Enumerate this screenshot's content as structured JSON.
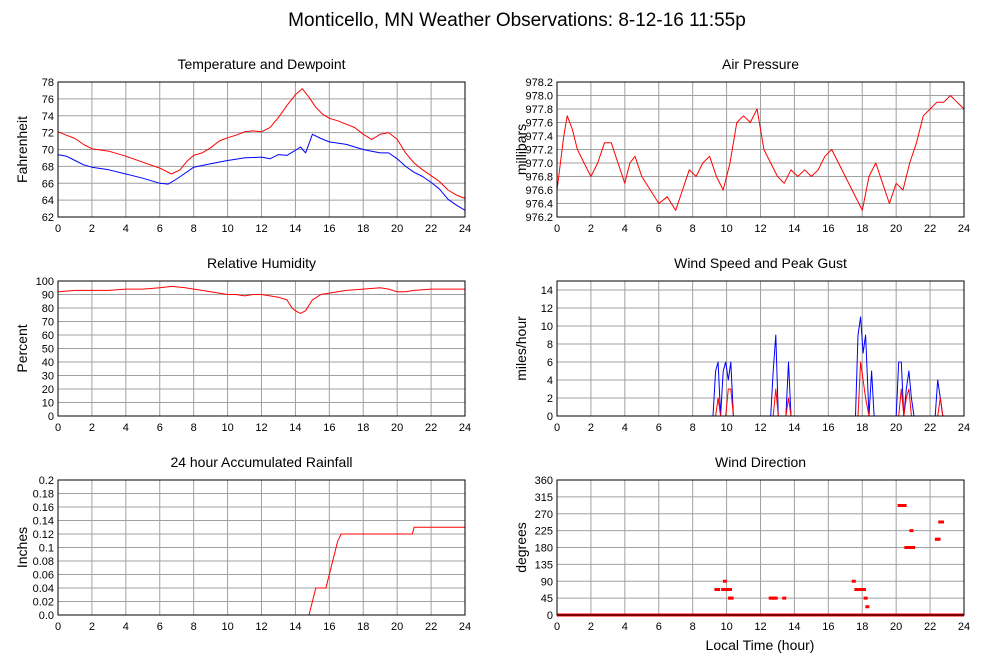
{
  "page": {
    "title": "Monticello, MN Weather Observations: 8-12-16 11:55p",
    "x_axis_footer": "Local Time (hour)"
  },
  "colors": {
    "red": "#ff0000",
    "blue": "#0000ff",
    "grid": "#a0a0a0",
    "frame": "#000000"
  },
  "chart_data": [
    {
      "id": "temp",
      "type": "line",
      "title": "Temperature and Dewpoint",
      "xlabel": "",
      "ylabel": "Fahrenheit",
      "xlim": [
        0,
        24
      ],
      "ylim": [
        62,
        78
      ],
      "xticks": [
        0,
        2,
        4,
        6,
        8,
        10,
        12,
        14,
        16,
        18,
        20,
        22,
        24
      ],
      "yticks": [
        62,
        64,
        66,
        68,
        70,
        72,
        74,
        76,
        78
      ],
      "grid": true,
      "series": [
        {
          "color": "#ff0000",
          "x": [
            0,
            0.5,
            1,
            1.5,
            2,
            3,
            4,
            5,
            6,
            6.7,
            7.2,
            7.6,
            8,
            8.5,
            9,
            9.5,
            10,
            10.5,
            11,
            11.5,
            12,
            12.5,
            13,
            13.5,
            14,
            14.4,
            14.8,
            15.2,
            15.6,
            16,
            16.5,
            17,
            17.5,
            18,
            18.5,
            19,
            19.5,
            20,
            20.5,
            21,
            21.5,
            22,
            22.5,
            23,
            23.5,
            24
          ],
          "y": [
            72.1,
            71.7,
            71.3,
            70.6,
            70.1,
            69.8,
            69.2,
            68.5,
            67.8,
            67.1,
            67.6,
            68.6,
            69.3,
            69.6,
            70.2,
            71.0,
            71.4,
            71.7,
            72.1,
            72.2,
            72.1,
            72.6,
            73.8,
            75.2,
            76.5,
            77.2,
            76.2,
            75.0,
            74.2,
            73.7,
            73.4,
            73.0,
            72.6,
            71.8,
            71.2,
            71.8,
            72.0,
            71.2,
            69.6,
            68.4,
            67.6,
            66.9,
            66.2,
            65.2,
            64.6,
            64.2
          ]
        },
        {
          "color": "#0000ff",
          "x": [
            0,
            0.5,
            1,
            1.5,
            2,
            3,
            4,
            5,
            6,
            6.5,
            7,
            7.5,
            8,
            9,
            10,
            11,
            12,
            12.5,
            13,
            13.5,
            14,
            14.3,
            14.6,
            15,
            15.5,
            16,
            17,
            17.5,
            18,
            18.5,
            19,
            19.5,
            20,
            20.5,
            21,
            21.5,
            22,
            22.5,
            23,
            23.5,
            24
          ],
          "y": [
            69.4,
            69.2,
            68.7,
            68.2,
            67.9,
            67.6,
            67.1,
            66.6,
            66.0,
            65.9,
            66.5,
            67.2,
            67.9,
            68.3,
            68.7,
            69.0,
            69.1,
            68.9,
            69.4,
            69.3,
            69.9,
            70.3,
            69.6,
            71.8,
            71.3,
            70.9,
            70.6,
            70.3,
            70.0,
            69.8,
            69.6,
            69.6,
            68.9,
            68.0,
            67.3,
            66.8,
            66.1,
            65.3,
            64.1,
            63.4,
            62.8
          ]
        }
      ]
    },
    {
      "id": "pressure",
      "type": "line",
      "title": "Air Pressure",
      "xlabel": "",
      "ylabel": "millibars",
      "xlim": [
        0,
        24
      ],
      "ylim": [
        976.2,
        978.2
      ],
      "xticks": [
        0,
        2,
        4,
        6,
        8,
        10,
        12,
        14,
        16,
        18,
        20,
        22,
        24
      ],
      "yticks": [
        "976.2",
        "976.4",
        "976.6",
        "976.8",
        "977.0",
        "977.2",
        "977.4",
        "977.6",
        "977.8",
        "978.0",
        "978.2"
      ],
      "grid": true,
      "series": [
        {
          "color": "#ff0000",
          "x": [
            0,
            0.2,
            0.4,
            0.6,
            0.9,
            1.2,
            1.6,
            2,
            2.4,
            2.8,
            3.2,
            3.6,
            4,
            4.3,
            4.6,
            5,
            5.5,
            6,
            6.5,
            7,
            7.4,
            7.8,
            8.2,
            8.6,
            9,
            9.4,
            9.8,
            10.2,
            10.6,
            11,
            11.4,
            11.8,
            12.2,
            12.6,
            13,
            13.4,
            13.8,
            14.2,
            14.6,
            15,
            15.4,
            15.8,
            16.2,
            16.6,
            17,
            17.4,
            17.8,
            18,
            18.4,
            18.8,
            19.2,
            19.6,
            20,
            20.4,
            20.8,
            21.2,
            21.6,
            22,
            22.4,
            22.8,
            23.2,
            23.6,
            24
          ],
          "y": [
            976.6,
            977.0,
            977.4,
            977.7,
            977.5,
            977.2,
            977.0,
            976.8,
            977.0,
            977.3,
            977.3,
            977.0,
            976.7,
            977.0,
            977.1,
            976.8,
            976.6,
            976.4,
            976.5,
            976.3,
            976.6,
            976.9,
            976.8,
            977.0,
            977.1,
            976.8,
            976.6,
            977.0,
            977.6,
            977.7,
            977.6,
            977.8,
            977.2,
            977.0,
            976.8,
            976.7,
            976.9,
            976.8,
            976.9,
            976.8,
            976.9,
            977.1,
            977.2,
            977.0,
            976.8,
            976.6,
            976.4,
            976.3,
            976.8,
            977.0,
            976.7,
            976.4,
            976.7,
            976.6,
            977.0,
            977.3,
            977.7,
            977.8,
            977.9,
            977.9,
            978.0,
            977.9,
            977.8
          ]
        }
      ]
    },
    {
      "id": "humidity",
      "type": "line",
      "title": "Relative Humidity",
      "xlabel": "",
      "ylabel": "Percent",
      "xlim": [
        0,
        24
      ],
      "ylim": [
        0,
        100
      ],
      "xticks": [
        0,
        2,
        4,
        6,
        8,
        10,
        12,
        14,
        16,
        18,
        20,
        22,
        24
      ],
      "yticks": [
        0,
        10,
        20,
        30,
        40,
        50,
        60,
        70,
        80,
        90,
        100
      ],
      "grid": true,
      "series": [
        {
          "color": "#ff0000",
          "x": [
            0,
            1,
            2,
            3,
            4,
            5,
            6,
            6.7,
            7.5,
            8,
            8.5,
            9,
            9.5,
            10,
            10.5,
            11,
            11.5,
            12,
            12.5,
            13,
            13.5,
            13.8,
            14,
            14.3,
            14.6,
            15,
            15.5,
            16,
            17,
            18,
            19,
            19.5,
            20,
            20.5,
            21,
            22,
            23,
            24
          ],
          "y": [
            92,
            93,
            93,
            93,
            94,
            94,
            95,
            96,
            95,
            94,
            93,
            92,
            91,
            90,
            90,
            89,
            90,
            90,
            89,
            88,
            86,
            80,
            78,
            76,
            78,
            86,
            90,
            91,
            93,
            94,
            95,
            94,
            92,
            92,
            93,
            94,
            94,
            94
          ]
        }
      ]
    },
    {
      "id": "wind",
      "type": "line",
      "title": "Wind Speed and Peak Gust",
      "xlabel": "",
      "ylabel": "miles/hour",
      "xlim": [
        0,
        24
      ],
      "ylim": [
        0,
        15
      ],
      "xticks": [
        0,
        2,
        4,
        6,
        8,
        10,
        12,
        14,
        16,
        18,
        20,
        22,
        24
      ],
      "yticks": [
        0,
        2,
        4,
        6,
        8,
        10,
        12,
        14
      ],
      "grid": true,
      "series": [
        {
          "color": "#0000ff",
          "x": [
            0,
            9.2,
            9.35,
            9.5,
            9.65,
            9.8,
            9.95,
            10.1,
            10.25,
            10.4,
            10.55,
            12.6,
            12.75,
            12.9,
            13.05,
            13.5,
            13.65,
            13.8,
            17.6,
            17.75,
            17.9,
            18.05,
            18.2,
            18.4,
            18.55,
            18.7,
            20.0,
            20.15,
            20.3,
            20.45,
            20.6,
            20.75,
            20.9,
            21.05,
            22.3,
            22.45,
            22.6,
            22.75,
            24
          ],
          "y": [
            0,
            0,
            5,
            6,
            0,
            5,
            6,
            4,
            6,
            0,
            0,
            0,
            5,
            9,
            0,
            0,
            6,
            0,
            0,
            9,
            11,
            7,
            9,
            0,
            5,
            0,
            0,
            6,
            6,
            0,
            3,
            5,
            2,
            0,
            0,
            4,
            2,
            0,
            0
          ]
        },
        {
          "color": "#ff0000",
          "x": [
            0,
            9.35,
            9.5,
            9.65,
            9.95,
            10.1,
            10.25,
            10.4,
            12.75,
            12.9,
            13.05,
            13.5,
            13.65,
            13.8,
            17.75,
            17.9,
            18.05,
            18.2,
            18.4,
            20.15,
            20.3,
            20.45,
            20.6,
            20.75,
            20.9,
            22.45,
            22.6,
            22.75,
            24
          ],
          "y": [
            0,
            0,
            2,
            0,
            0,
            3,
            3,
            0,
            0,
            3,
            0,
            0,
            2,
            0,
            0,
            6,
            4,
            2,
            0,
            0,
            3,
            0,
            2,
            3,
            0,
            0,
            2,
            0,
            0
          ]
        }
      ]
    },
    {
      "id": "rain",
      "type": "line",
      "title": "24 hour Accumulated Rainfall",
      "xlabel": "",
      "ylabel": "Inches",
      "xlim": [
        0,
        24
      ],
      "ylim": [
        0,
        0.2
      ],
      "xticks": [
        0,
        2,
        4,
        6,
        8,
        10,
        12,
        14,
        16,
        18,
        20,
        22,
        24
      ],
      "yticks": [
        "0.0",
        "0.02",
        "0.04",
        "0.06",
        "0.08",
        "0.1",
        "0.12",
        "0.14",
        "0.16",
        "0.18",
        "0.2"
      ],
      "grid": true,
      "series": [
        {
          "color": "#ff0000",
          "x": [
            0,
            14.8,
            15.0,
            15.2,
            15.8,
            16.0,
            16.3,
            16.5,
            16.7,
            17.0,
            20.9,
            21.0,
            24
          ],
          "y": [
            0,
            0,
            0.02,
            0.04,
            0.04,
            0.06,
            0.09,
            0.11,
            0.12,
            0.12,
            0.12,
            0.13,
            0.13
          ]
        }
      ]
    },
    {
      "id": "direction",
      "type": "scatter",
      "title": "Wind Direction",
      "xlabel": "Local Time (hour)",
      "ylabel": "degrees",
      "xlim": [
        0,
        24
      ],
      "ylim": [
        0,
        360
      ],
      "xticks": [
        0,
        2,
        4,
        6,
        8,
        10,
        12,
        14,
        16,
        18,
        20,
        22,
        24
      ],
      "yticks": [
        0,
        45,
        90,
        135,
        180,
        225,
        270,
        315,
        360
      ],
      "grid": true,
      "baseline": {
        "y": 0,
        "from": 0,
        "to": 24,
        "color": "#ff0000"
      },
      "series": [
        {
          "color": "#ff0000",
          "x": [
            9.4,
            9.5,
            9.8,
            9.9,
            10.0,
            10.1,
            10.2,
            9.9,
            10.2,
            10.3,
            12.6,
            12.7,
            12.8,
            12.9,
            13.4,
            17.5,
            17.65,
            17.7,
            17.8,
            17.9,
            18.0,
            18.1,
            18.2,
            18.3,
            20.2,
            20.3,
            20.4,
            20.5,
            20.6,
            20.7,
            20.8,
            20.9,
            21.0,
            20.9,
            22.4,
            22.5,
            22.6,
            22.7
          ],
          "y": [
            68,
            68,
            68,
            68,
            68,
            68,
            68,
            90,
            45,
            45,
            45,
            45,
            45,
            45,
            45,
            90,
            68,
            68,
            68,
            68,
            68,
            68,
            45,
            22,
            292,
            292,
            292,
            292,
            180,
            180,
            180,
            180,
            180,
            225,
            202,
            202,
            248,
            248
          ]
        }
      ]
    }
  ]
}
